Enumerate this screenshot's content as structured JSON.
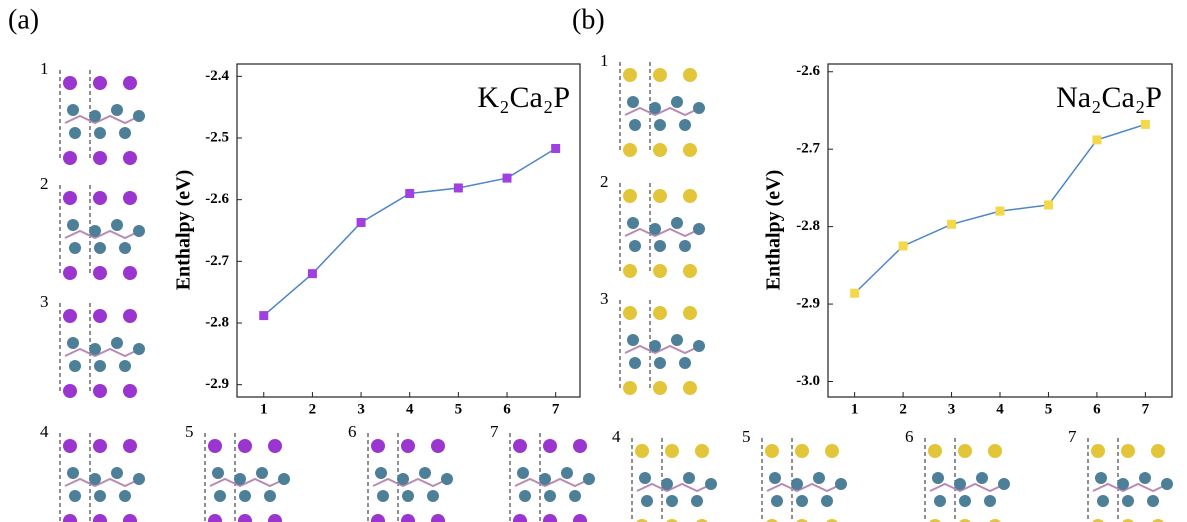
{
  "chart_data": [
    {
      "type": "line",
      "panel": "(a)",
      "title": "K₂Ca₂P",
      "ylabel": "Enthalpy (eV)",
      "structures": [
        "1",
        "2",
        "3",
        "4",
        "5",
        "6",
        "7"
      ],
      "x": [
        1,
        2,
        3,
        4,
        5,
        6,
        7
      ],
      "values": [
        -2.788,
        -2.72,
        -2.637,
        -2.59,
        -2.581,
        -2.565,
        -2.517
      ],
      "color": "#4a86c8",
      "marker_color": "#a040e0",
      "xlim": [
        0.45,
        7.5
      ],
      "xticks": [
        1,
        2,
        3,
        4,
        5,
        6,
        7
      ],
      "ylim": [
        -2.92,
        -2.38
      ],
      "yticks": [
        -2.9,
        -2.8,
        -2.7,
        -2.6,
        -2.5,
        -2.4
      ]
    },
    {
      "type": "line",
      "panel": "(b)",
      "title": "Na₂Ca₂P",
      "ylabel": "Enthalpy (eV)",
      "structures": [
        "1",
        "2",
        "3",
        "4",
        "5",
        "6",
        "7"
      ],
      "x": [
        1,
        2,
        3,
        4,
        5,
        6,
        7
      ],
      "values": [
        -2.886,
        -2.825,
        -2.797,
        -2.78,
        -2.772,
        -2.688,
        -2.668
      ],
      "color": "#4a86c8",
      "marker_color": "#f2d84a",
      "xlim": [
        0.45,
        7.55
      ],
      "xticks": [
        1,
        2,
        3,
        4,
        5,
        6,
        7
      ],
      "ylim": [
        -3.02,
        -2.59
      ],
      "yticks": [
        {
          "value": -3,
          "label": "-3.0"
        },
        -2.9,
        -2.8,
        -2.7,
        -2.6
      ]
    }
  ]
}
